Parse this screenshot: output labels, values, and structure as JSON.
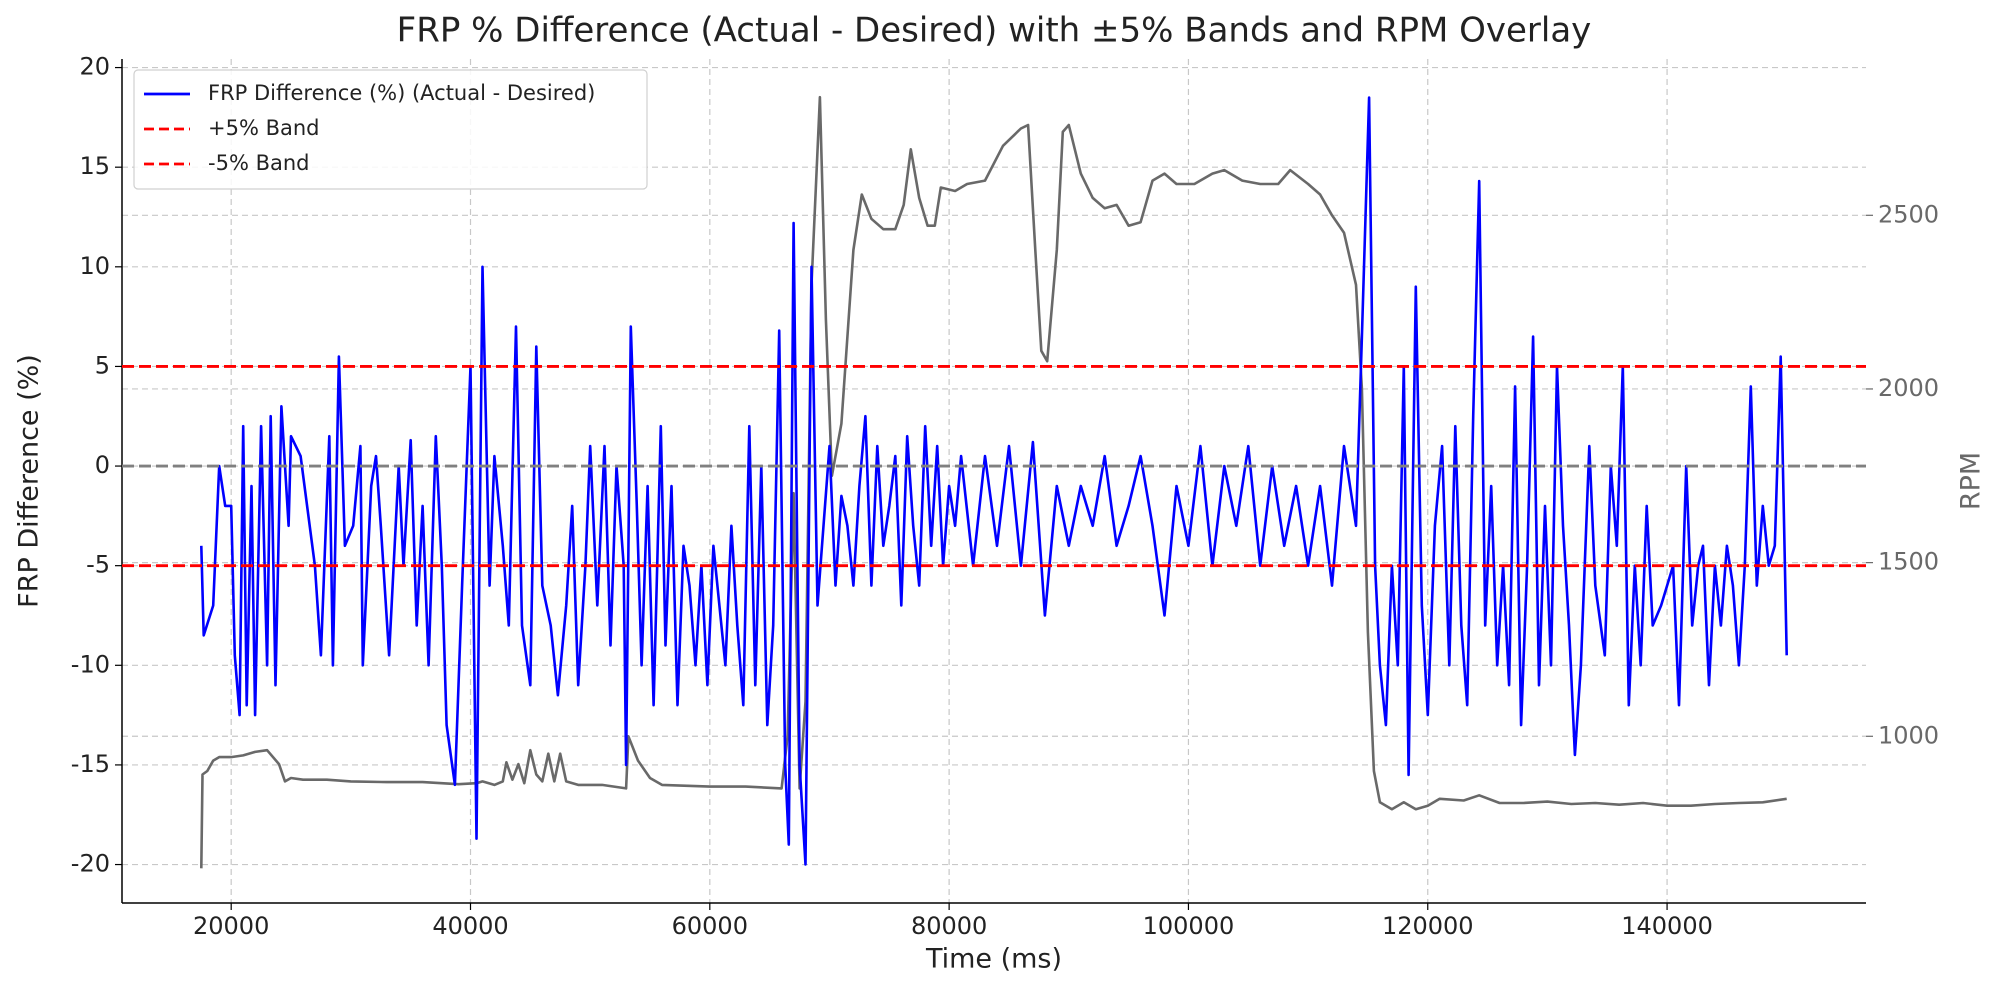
{
  "chart_data": {
    "type": "line",
    "title": "FRP % Difference (Actual - Desired) with ±5% Bands and RPM Overlay",
    "xlabel": "Time (ms)",
    "ylabel": "FRP Difference (%)",
    "y2label": "RPM",
    "xlim": [
      10875,
      156625
    ],
    "ylim": [
      -21.93,
      20.43
    ],
    "y2lim": [
      520,
      2950
    ],
    "xticks": [
      20000,
      40000,
      60000,
      80000,
      100000,
      120000,
      140000
    ],
    "yticks": [
      -20,
      -15,
      -10,
      -5,
      0,
      5,
      10,
      15,
      20
    ],
    "y2ticks": [
      1000,
      1500,
      2000,
      2500
    ],
    "grid": true,
    "legend": "upper left",
    "hlines": [
      {
        "name": "+5% Band",
        "value": 5,
        "color": "#ff0000",
        "style": "dashed"
      },
      {
        "name": "-5% Band",
        "value": -5,
        "color": "#ff0000",
        "style": "dashed"
      },
      {
        "value": 0,
        "color": "#808080",
        "style": "dashed"
      }
    ],
    "series": [
      {
        "name": "FRP Difference (%) (Actual - Desired)",
        "color": "#0000ff",
        "x": [
          17500,
          17700,
          18500,
          19000,
          19500,
          20000,
          20300,
          20700,
          21000,
          21300,
          21700,
          22000,
          22500,
          23000,
          23300,
          23700,
          24200,
          24800,
          25000,
          25800,
          27000,
          27500,
          28200,
          28500,
          29000,
          29500,
          30200,
          30800,
          31000,
          31700,
          32100,
          32500,
          33200,
          34000,
          34400,
          35000,
          35500,
          36000,
          36500,
          37100,
          37600,
          38000,
          38700,
          39300,
          40000,
          40500,
          41000,
          41600,
          42000,
          42700,
          43200,
          43800,
          44300,
          45000,
          45500,
          46000,
          46700,
          47300,
          48000,
          48500,
          49000,
          49600,
          50000,
          50600,
          51200,
          51700,
          52200,
          52800,
          53000,
          53400,
          53900,
          54300,
          54800,
          55300,
          55900,
          56300,
          56800,
          57300,
          57800,
          58300,
          58800,
          59300,
          59800,
          60300,
          60800,
          61300,
          61800,
          62300,
          62800,
          63300,
          63800,
          64300,
          64800,
          65300,
          65800,
          66300,
          66600,
          67000,
          67500,
          68000,
          68500,
          69000,
          69500,
          70000,
          70500,
          71000,
          71500,
          72000,
          72500,
          73000,
          73500,
          74000,
          74500,
          75000,
          75500,
          76000,
          76500,
          77000,
          77500,
          78000,
          78500,
          79000,
          79500,
          80000,
          80500,
          81000,
          82000,
          83000,
          84000,
          85000,
          86000,
          87000,
          88000,
          89000,
          90000,
          91000,
          92000,
          93000,
          94000,
          95000,
          96000,
          97000,
          98000,
          99000,
          100000,
          101000,
          102000,
          103000,
          104000,
          105000,
          106000,
          107000,
          108000,
          109000,
          110000,
          111000,
          112000,
          113000,
          114000,
          114500,
          115100,
          115600,
          116000,
          116500,
          117000,
          117500,
          118000,
          118400,
          119000,
          119500,
          120000,
          120600,
          121200,
          121800,
          122300,
          122800,
          123300,
          123800,
          124300,
          124800,
          125300,
          125800,
          126300,
          126800,
          127300,
          127800,
          128300,
          128800,
          129300,
          129800,
          130300,
          130800,
          131300,
          131800,
          132300,
          132800,
          133500,
          134000,
          134800,
          135300,
          135800,
          136300,
          136800,
          137300,
          137800,
          138300,
          138800,
          139500,
          140500,
          141000,
          141600,
          142100,
          142600,
          143000,
          143500,
          144000,
          144500,
          145000,
          145500,
          146000,
          146500,
          147000,
          147500,
          148000,
          148500,
          149000,
          149500,
          150000
        ],
        "values": [
          -4,
          -8.5,
          -7,
          0,
          -2,
          -2,
          -9.5,
          -12.5,
          2,
          -12,
          -1,
          -12.5,
          2,
          -10,
          2.5,
          -11,
          3,
          -3,
          1.5,
          0.5,
          -5,
          -9.5,
          1.5,
          -10,
          5.5,
          -4,
          -3,
          1,
          -10,
          -1,
          0.5,
          -3,
          -9.5,
          0,
          -5,
          1.3,
          -8,
          -2,
          -10,
          1.5,
          -5,
          -13,
          -16,
          -6,
          5,
          -18.7,
          10,
          -6,
          0.5,
          -4,
          -8,
          7,
          -8,
          -11,
          6,
          -6,
          -8,
          -11.5,
          -7,
          -2,
          -11,
          -5,
          1,
          -7,
          1,
          -9,
          0,
          -5,
          -15,
          7,
          -2,
          -10,
          -1,
          -12,
          2,
          -9,
          -1,
          -12,
          -4,
          -6,
          -10,
          -5,
          -11,
          -4,
          -7,
          -10,
          -3,
          -8,
          -12,
          2,
          -11,
          0,
          -13,
          -8,
          6.8,
          -15,
          -19,
          12.2,
          -15,
          -20,
          10,
          -7,
          -3,
          1,
          -6,
          -1.5,
          -3,
          -6,
          -1,
          2.5,
          -6,
          1,
          -4,
          -2,
          0.5,
          -7,
          1.5,
          -3,
          -6,
          2,
          -4,
          1,
          -5,
          -1,
          -3,
          0.5,
          -5,
          0.5,
          -4,
          1,
          -5,
          1.2,
          -7.5,
          -1,
          -4,
          -1,
          -3,
          0.5,
          -4,
          -2,
          0.5,
          -3,
          -7.5,
          -1,
          -4,
          1,
          -5,
          0,
          -3,
          1,
          -5,
          0,
          -4,
          -1,
          -5,
          -1,
          -6,
          1,
          -3,
          6.5,
          18.5,
          -5,
          -10,
          -13,
          -5,
          -10,
          5,
          -15.5,
          9,
          -7,
          -12.5,
          -3,
          1,
          -10,
          2,
          -8,
          -12,
          2.5,
          14.3,
          -8,
          -1,
          -10,
          -5,
          -11,
          4,
          -13,
          -5,
          6.5,
          -11,
          -2,
          -10,
          5,
          -3,
          -8,
          -14.5,
          -10,
          1,
          -6,
          -9.5,
          0,
          -4,
          5,
          -12,
          -5,
          -10,
          -2,
          -8,
          -7,
          -5,
          -12,
          0,
          -8,
          -5,
          -4,
          -11,
          -5,
          -8,
          -4,
          -6,
          -10,
          -5,
          4,
          -6,
          -2,
          -5,
          -4,
          5.5,
          -9.5
        ]
      },
      {
        "color": "#696969",
        "axis": "y2",
        "x": [
          17500,
          17600,
          18000,
          18500,
          19000,
          20000,
          21000,
          22000,
          23000,
          24000,
          24500,
          25000,
          26000,
          28000,
          30000,
          33000,
          36000,
          39000,
          40500,
          41000,
          42000,
          42700,
          43000,
          43500,
          44000,
          44500,
          45000,
          45500,
          46000,
          46500,
          47000,
          47500,
          48000,
          49000,
          51000,
          53000,
          53200,
          54000,
          55000,
          56000,
          60000,
          63000,
          66000,
          66500,
          67000,
          67500,
          68000,
          68500,
          69200,
          69700,
          70200,
          71000,
          72000,
          72700,
          73500,
          74500,
          75500,
          76200,
          76800,
          77500,
          78200,
          78800,
          79300,
          80500,
          81500,
          83000,
          84500,
          86000,
          86600,
          87200,
          87700,
          88200,
          89000,
          89500,
          90000,
          91000,
          92000,
          93000,
          94000,
          95000,
          96000,
          97000,
          98000,
          99000,
          100500,
          102000,
          103000,
          104500,
          106000,
          107500,
          108500,
          110000,
          111000,
          112000,
          113000,
          114000,
          114500,
          115000,
          115500,
          116000,
          117000,
          118000,
          119000,
          120000,
          121000,
          123000,
          124300,
          126000,
          128000,
          130000,
          132000,
          134000,
          136000,
          138000,
          140000,
          142000,
          144000,
          146000,
          148000,
          150000
        ],
        "values": [
          620,
          890,
          900,
          930,
          940,
          940,
          945,
          955,
          960,
          920,
          870,
          880,
          875,
          875,
          870,
          868,
          868,
          862,
          865,
          870,
          860,
          870,
          925,
          875,
          920,
          865,
          960,
          890,
          870,
          950,
          870,
          950,
          870,
          860,
          860,
          850,
          1000,
          930,
          880,
          860,
          855,
          855,
          850,
          1000,
          1700,
          850,
          1100,
          2300,
          2840,
          2200,
          1750,
          1900,
          2400,
          2560,
          2490,
          2460,
          2460,
          2530,
          2690,
          2550,
          2470,
          2470,
          2580,
          2570,
          2590,
          2600,
          2700,
          2750,
          2760,
          2400,
          2110,
          2080,
          2400,
          2740,
          2760,
          2620,
          2550,
          2520,
          2530,
          2470,
          2480,
          2600,
          2620,
          2590,
          2590,
          2620,
          2630,
          2600,
          2590,
          2590,
          2630,
          2590,
          2560,
          2500,
          2450,
          2300,
          2000,
          1300,
          900,
          810,
          790,
          810,
          790,
          800,
          820,
          815,
          830,
          808,
          808,
          812,
          805,
          808,
          803,
          808,
          800,
          800,
          805,
          808,
          810,
          820
        ]
      }
    ]
  }
}
